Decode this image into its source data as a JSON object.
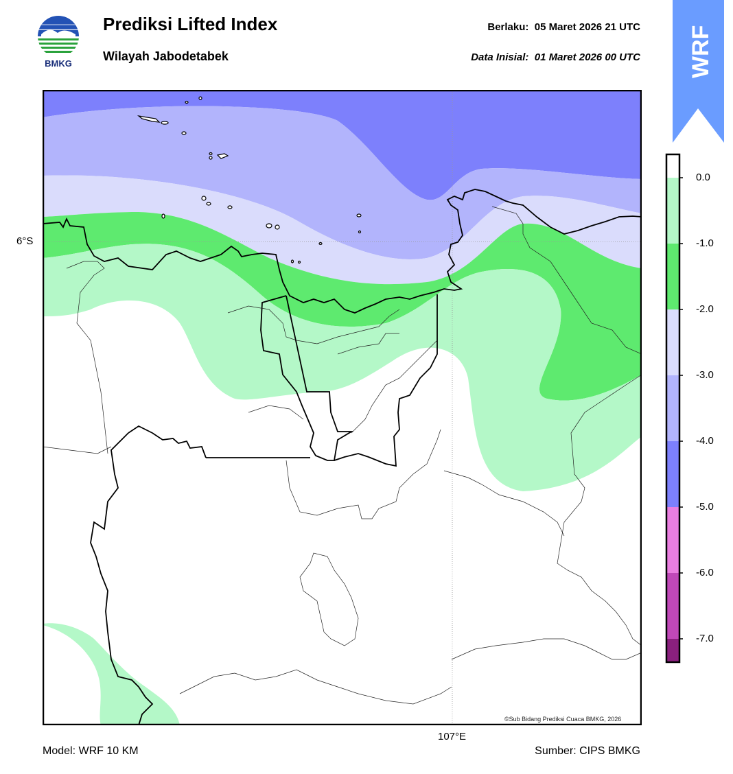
{
  "header": {
    "title": "Prediksi Lifted Index",
    "subtitle": "Wilayah Jabodetabek",
    "valid_label": "Berlaku:",
    "valid_value": "05 Maret 2026 21 UTC",
    "init_label": "Data Inisial:",
    "init_value": "01 Maret 2026 00 UTC"
  },
  "logo": {
    "text": "BMKG",
    "icon": "bmkg-logo-icon"
  },
  "badge": {
    "text": "WRF",
    "color": "#6a9cff"
  },
  "map": {
    "lat_label": "6°S",
    "lon_label": "107°E",
    "credit": "©Sub Bidang Prediksi Cuaca BMKG, 2026"
  },
  "colorbar": {
    "ticks": [
      "0.0",
      "-1.0",
      "-2.0",
      "-3.0",
      "-4.0",
      "-5.0",
      "-6.0",
      "-7.0"
    ],
    "colors": {
      "0_to_-1": "#b4f8c8",
      "-1_to_-2": "#5eea6f",
      "-2_to_-3": "#dadcfc",
      "-3_to_-4": "#b2b4fc",
      "-4_to_-5": "#7d80fc",
      "-5_to_-6": "#ea7ee0",
      "-6_to_-7": "#c048b8",
      "below_-7": "#8a207e"
    }
  },
  "footer": {
    "model": "Model: WRF 10 KM",
    "source": "Sumber: CIPS BMKG"
  }
}
